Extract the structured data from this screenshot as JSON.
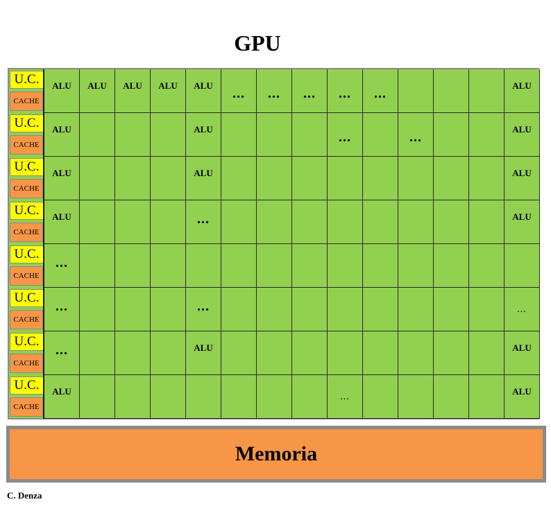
{
  "title": "GPU",
  "uc_label": "U.C.",
  "cache_label": "CACHE",
  "alu_label": "ALU",
  "ellipsis": "...",
  "memory_label": "Memoria",
  "credit": "C. Denza",
  "colors": {
    "alu_green": "#92d050",
    "uc_yellow": "#ffff00",
    "cache_orange": "#f79646",
    "frame_gray": "#8a8a8a"
  },
  "rows": [
    [
      "ALU",
      "ALU",
      "ALU",
      "ALU",
      "ALU",
      "...",
      "...",
      "...",
      "...",
      "...",
      "",
      "",
      "",
      "ALU"
    ],
    [
      "ALU",
      "",
      "",
      "",
      "ALU",
      "",
      "",
      "",
      "...",
      "",
      "...",
      "",
      "",
      "ALU"
    ],
    [
      "ALU",
      "",
      "",
      "",
      "ALU",
      "",
      "",
      "",
      "",
      "",
      "",
      "",
      "",
      "ALU"
    ],
    [
      "ALU",
      "",
      "",
      "",
      "...",
      "",
      "",
      "",
      "",
      "",
      "",
      "",
      "",
      "ALU"
    ],
    [
      "...",
      "",
      "",
      "",
      "",
      "",
      "",
      "",
      "",
      "",
      "",
      "",
      "",
      ""
    ],
    [
      "...",
      "",
      "",
      "",
      "...",
      "",
      "",
      "",
      "",
      "",
      "",
      "",
      "",
      "..."
    ],
    [
      "...",
      "",
      "",
      "",
      "ALU",
      "",
      "",
      "",
      "",
      "",
      "",
      "",
      "",
      "ALU"
    ],
    [
      "ALU",
      "",
      "",
      "",
      "",
      "",
      "",
      "",
      "...",
      "",
      "",
      "",
      "",
      "ALU"
    ]
  ]
}
